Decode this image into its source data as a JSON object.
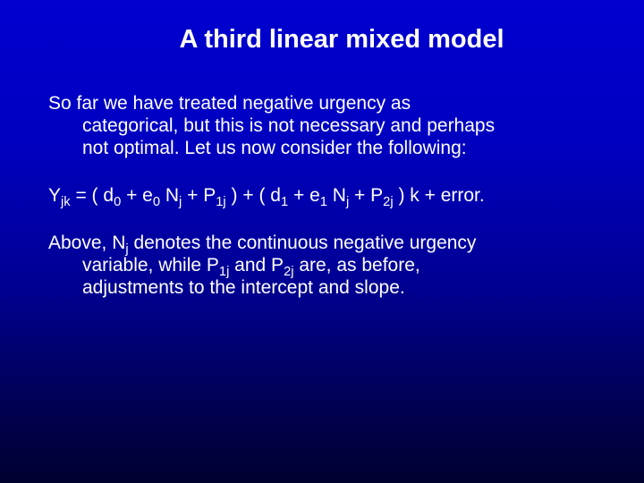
{
  "slide": {
    "background_gradient": [
      "#0000d0",
      "#0000c0",
      "#000090",
      "#000050",
      "#000030"
    ],
    "text_color": "#ffffff",
    "title": {
      "text": "A third linear mixed model",
      "font_weight": "bold",
      "font_size_pt": 29,
      "align": "center"
    },
    "body_font_size_pt": 21,
    "paragraphs": {
      "p1": {
        "line1": "So far we have treated negative urgency as",
        "line2": "categorical, but this is not necessary and perhaps",
        "line3": "not optimal.  Let us now consider the following:"
      },
      "formula": {
        "Y": "Y",
        "Y_sub": "jk",
        "eq1": " = ( d",
        "d0_sub": "0",
        "eq2": " + e",
        "e0_sub": "0",
        "eq3": " N",
        "Nj1_sub": "j",
        "eq4": " + P",
        "P1j_sub": "1j",
        "eq5": " ) + ( d",
        "d1_sub": "1",
        "eq6": " + e",
        "e1_sub": "1",
        "eq7": " N",
        "Nj2_sub": "j",
        "eq8": " + P",
        "P2j_sub": "2j",
        "eq9": " ) k + error."
      },
      "p3": {
        "t1": "Above,  N",
        "sub1": "j",
        "t2": "  denotes the continuous negative urgency",
        "line2a": "variable,  while  P",
        "sub2": "1j",
        "line2b": "  and  P",
        "sub3": "2j",
        "line2c": " are, as before,",
        "line3": "adjustments to the intercept and slope."
      }
    }
  }
}
